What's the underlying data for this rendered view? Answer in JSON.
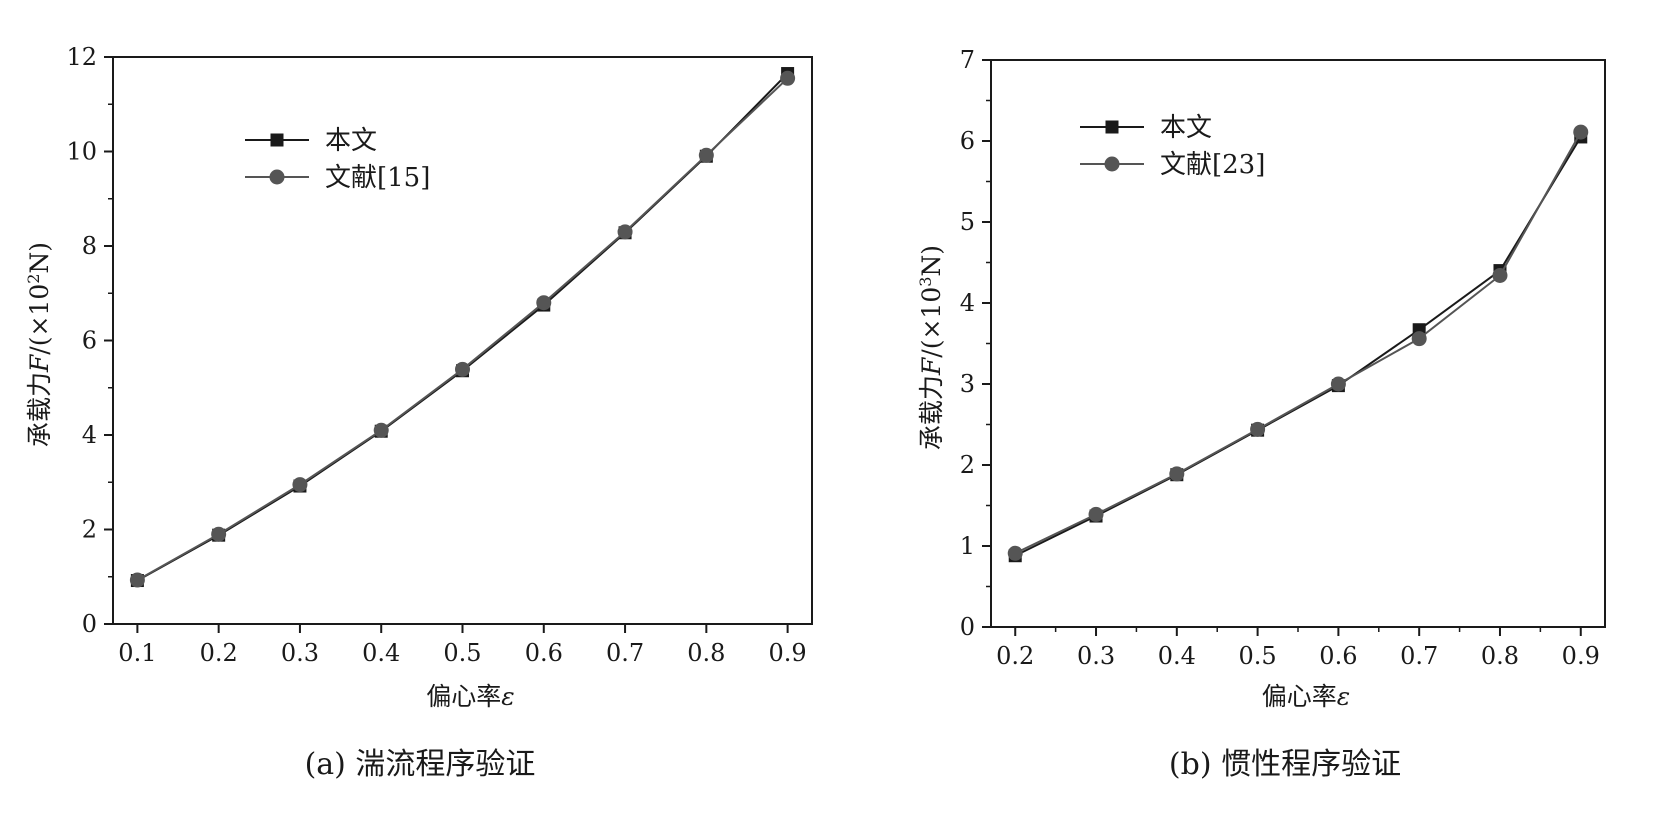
{
  "chart_data": [
    {
      "type": "line",
      "caption": "(a) 湍流程序验证",
      "xlabel": "偏心率",
      "xlabel_symbol": "ε",
      "ylabel": "承载力",
      "ylabel_symbol": "F",
      "ylabel_unit": "/(×10",
      "ylabel_exp": "2",
      "ylabel_unit_end": "N)",
      "xlim": [
        0.07,
        0.93
      ],
      "ylim": [
        0,
        12
      ],
      "xticks": [
        0.1,
        0.2,
        0.3,
        0.4,
        0.5,
        0.6,
        0.7,
        0.8,
        0.9
      ],
      "xtick_labels": [
        "0.1",
        "0.2",
        "0.3",
        "0.4",
        "0.5",
        "0.6",
        "0.7",
        "0.8",
        "0.9"
      ],
      "yticks": [
        0,
        2,
        4,
        6,
        8,
        10,
        12
      ],
      "ytick_labels": [
        "0",
        "2",
        "4",
        "6",
        "8",
        "10",
        "12"
      ],
      "legend_position": "top-left",
      "grid": false,
      "series": [
        {
          "name": "本文",
          "marker": "square",
          "color": "#1a1a1a",
          "x": [
            0.1,
            0.2,
            0.3,
            0.4,
            0.5,
            0.6,
            0.7,
            0.8,
            0.9
          ],
          "y": [
            0.92,
            1.88,
            2.92,
            4.08,
            5.36,
            6.75,
            8.28,
            9.9,
            11.65
          ]
        },
        {
          "name": "文献[15]",
          "marker": "circle",
          "color": "#555555",
          "x": [
            0.1,
            0.2,
            0.3,
            0.4,
            0.5,
            0.6,
            0.7,
            0.8,
            0.9
          ],
          "y": [
            0.93,
            1.9,
            2.95,
            4.1,
            5.39,
            6.8,
            8.3,
            9.92,
            11.55
          ]
        }
      ]
    },
    {
      "type": "line",
      "caption": "(b) 惯性程序验证",
      "xlabel": "偏心率",
      "xlabel_symbol": "ε",
      "ylabel": "承载力",
      "ylabel_symbol": "F",
      "ylabel_unit": "/(×10",
      "ylabel_exp": "3",
      "ylabel_unit_end": "N)",
      "xlim": [
        0.17,
        0.93
      ],
      "ylim": [
        0,
        7
      ],
      "xticks": [
        0.2,
        0.3,
        0.4,
        0.5,
        0.6,
        0.7,
        0.8,
        0.9
      ],
      "xtick_labels": [
        "0.2",
        "0.3",
        "0.4",
        "0.5",
        "0.6",
        "0.7",
        "0.8",
        "0.9"
      ],
      "yticks": [
        0,
        1,
        2,
        3,
        4,
        5,
        6,
        7
      ],
      "ytick_labels": [
        "0",
        "1",
        "2",
        "3",
        "4",
        "5",
        "6",
        "7"
      ],
      "legend_position": "top-left",
      "grid": false,
      "series": [
        {
          "name": "本文",
          "marker": "square",
          "color": "#1a1a1a",
          "x": [
            0.2,
            0.3,
            0.4,
            0.5,
            0.6,
            0.7,
            0.8,
            0.9
          ],
          "y": [
            0.88,
            1.37,
            1.88,
            2.43,
            2.98,
            3.67,
            4.4,
            6.05
          ]
        },
        {
          "name": "文献[23]",
          "marker": "circle",
          "color": "#555555",
          "x": [
            0.2,
            0.3,
            0.4,
            0.5,
            0.6,
            0.7,
            0.8,
            0.9
          ],
          "y": [
            0.91,
            1.39,
            1.89,
            2.44,
            3.0,
            3.56,
            4.34,
            6.11
          ]
        }
      ]
    }
  ]
}
